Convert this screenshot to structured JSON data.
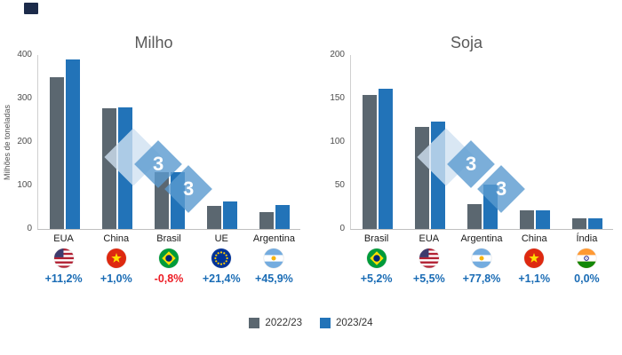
{
  "watermark": {
    "glyph": "3"
  },
  "legend": {
    "items": [
      {
        "label": "2022/23",
        "color": "#5b6770"
      },
      {
        "label": "2023/24",
        "color": "#2273b8"
      }
    ]
  },
  "chart_data": [
    {
      "type": "bar",
      "title": "Milho",
      "ylabel": "Milhões de toneladas",
      "ylim": [
        0,
        400
      ],
      "yticks": [
        0,
        100,
        200,
        300,
        400
      ],
      "categories": [
        "EUA",
        "China",
        "Brasil",
        "UE",
        "Argentina"
      ],
      "series": [
        {
          "name": "2022/23",
          "values": [
            350,
            277,
            131,
            53,
            38
          ]
        },
        {
          "name": "2023/24",
          "values": [
            389,
            280,
            130,
            64,
            56
          ]
        }
      ],
      "flags": [
        "usa",
        "china",
        "brazil",
        "eu",
        "argentina"
      ],
      "changes": [
        {
          "text": "+11,2%",
          "color": "#1a6cb5"
        },
        {
          "text": "+1,0%",
          "color": "#1a6cb5"
        },
        {
          "text": "-0,8%",
          "color": "#ed1c24"
        },
        {
          "text": "+21,4%",
          "color": "#1a6cb5"
        },
        {
          "text": "+45,9%",
          "color": "#1a6cb5"
        }
      ]
    },
    {
      "type": "bar",
      "title": "Soja",
      "ylim": [
        0,
        200
      ],
      "yticks": [
        0,
        50,
        100,
        150,
        200
      ],
      "categories": [
        "Brasil",
        "EUA",
        "Argentina",
        "China",
        "Índia"
      ],
      "series": [
        {
          "name": "2022/23",
          "values": [
            154,
            117,
            29,
            21,
            12
          ]
        },
        {
          "name": "2023/24",
          "values": [
            161,
            123,
            51,
            21,
            12
          ]
        }
      ],
      "flags": [
        "brazil",
        "usa",
        "argentina",
        "china",
        "india"
      ],
      "changes": [
        {
          "text": "+5,2%",
          "color": "#1a6cb5"
        },
        {
          "text": "+5,5%",
          "color": "#1a6cb5"
        },
        {
          "text": "+77,8%",
          "color": "#1a6cb5"
        },
        {
          "text": "+1,1%",
          "color": "#1a6cb5"
        },
        {
          "text": "0,0%",
          "color": "#1a6cb5"
        }
      ]
    }
  ]
}
